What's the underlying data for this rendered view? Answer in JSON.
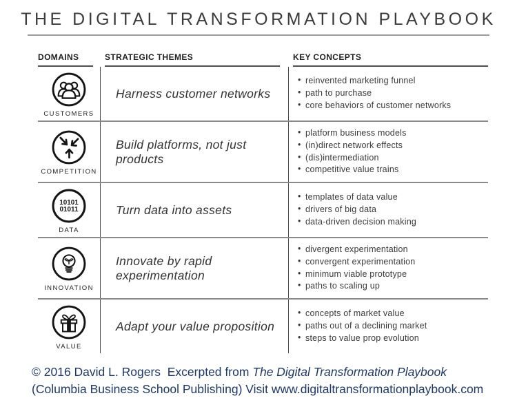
{
  "title": "THE DIGITAL TRANSFORMATION PLAYBOOK",
  "columns": {
    "domains": "DOMAINS",
    "themes": "STRATEGIC THEMES",
    "concepts": "KEY CONCEPTS"
  },
  "rows": [
    {
      "domain": "CUSTOMERS",
      "icon": "customers-icon",
      "theme": "Harness customer networks",
      "concepts": [
        "reinvented marketing funnel",
        "path to purchase",
        "core behaviors of customer networks"
      ]
    },
    {
      "domain": "COMPETITION",
      "icon": "competition-icon",
      "theme": "Build platforms, not just products",
      "concepts": [
        "platform business models",
        "(in)direct network effects",
        "(dis)intermediation",
        "competitive value trains"
      ]
    },
    {
      "domain": "DATA",
      "icon": "data-icon",
      "theme": "Turn data into assets",
      "concepts": [
        "templates of data value",
        "drivers of big data",
        "data-driven decision making"
      ]
    },
    {
      "domain": "INNOVATION",
      "icon": "innovation-icon",
      "theme": "Innovate by rapid experimentation",
      "concepts": [
        "divergent experimentation",
        "convergent experimentation",
        "minimum viable prototype",
        "paths to scaling up"
      ]
    },
    {
      "domain": "VALUE",
      "icon": "value-icon",
      "theme": "Adapt your value proposition",
      "concepts": [
        "concepts of market value",
        "paths out of a declining market",
        "steps to value prop evolution"
      ]
    }
  ],
  "data_icon_text": {
    "line1": "10101",
    "line2": "01011"
  },
  "footer": {
    "line1_prefix": "© 2016 David L. Rogers  Excerpted from ",
    "line1_italic": "The Digital Transformation Playbook",
    "line2": "(Columbia Business School Publishing) Visit www.digitaltransformationplaybook.com",
    "color": "#1f3864"
  }
}
